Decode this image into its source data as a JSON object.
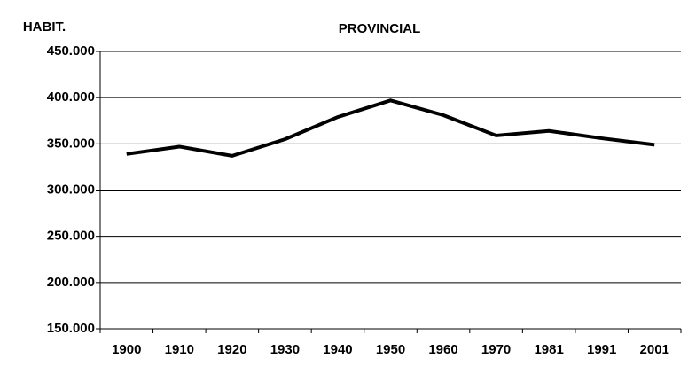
{
  "chart_data": {
    "type": "line",
    "title": "PROVINCIAL",
    "y_label": "HABIT.",
    "categories": [
      "1900",
      "1910",
      "1920",
      "1930",
      "1940",
      "1950",
      "1960",
      "1970",
      "1981",
      "1991",
      "2001"
    ],
    "series": [
      {
        "name": "PROVINCIAL",
        "color": "#000000",
        "values": [
          339000,
          347000,
          337000,
          355000,
          379000,
          397000,
          381000,
          359000,
          364000,
          356000,
          349000
        ]
      }
    ],
    "ylim": [
      150000,
      450000
    ],
    "yticks": [
      {
        "value": 150000,
        "label": "150.000"
      },
      {
        "value": 200000,
        "label": "200.000"
      },
      {
        "value": 250000,
        "label": "250.000"
      },
      {
        "value": 300000,
        "label": "300.000"
      },
      {
        "value": 350000,
        "label": "350.000"
      },
      {
        "value": 400000,
        "label": "400.000"
      },
      {
        "value": 450000,
        "label": "450.000"
      }
    ],
    "grid": true
  }
}
